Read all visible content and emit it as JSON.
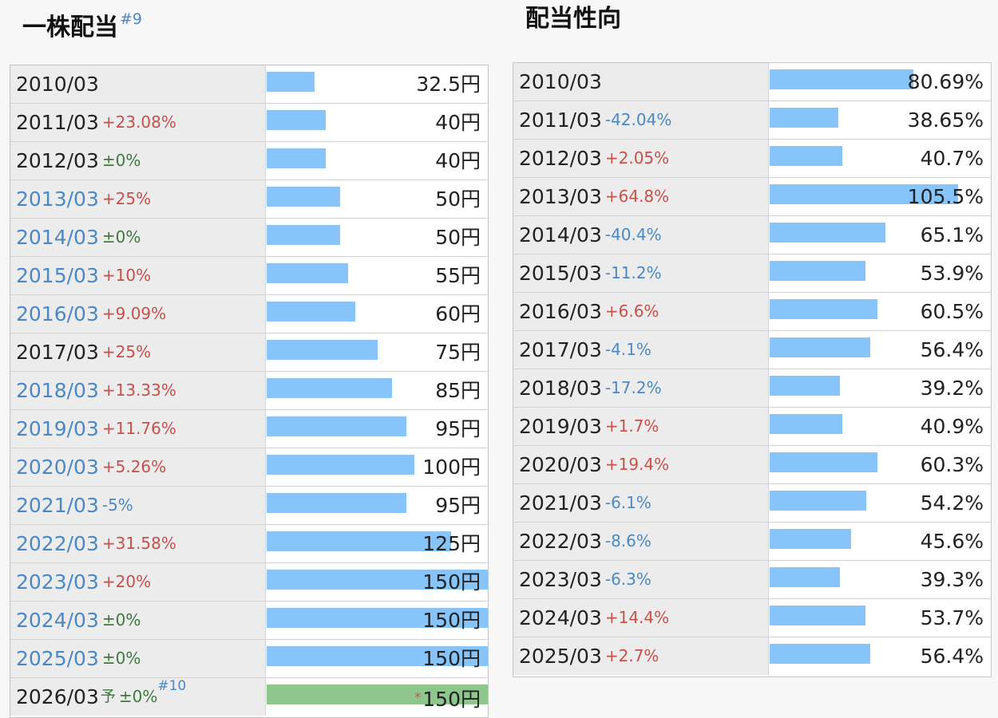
{
  "dividend_section": {
    "title": "一株配当",
    "title_note": "#9"
  },
  "payout_section": {
    "title": "配当性向"
  },
  "chart_data": [
    {
      "type": "bar",
      "title": "一株配当",
      "unit": "円",
      "xlim": [
        0,
        150
      ],
      "categories": [
        "2010/03",
        "2011/03",
        "2012/03",
        "2013/03",
        "2014/03",
        "2015/03",
        "2016/03",
        "2017/03",
        "2018/03",
        "2019/03",
        "2020/03",
        "2021/03",
        "2022/03",
        "2023/03",
        "2024/03",
        "2025/03",
        "2026/03"
      ],
      "values": [
        32.5,
        40,
        40,
        50,
        50,
        55,
        60,
        75,
        85,
        95,
        100,
        95,
        125,
        150,
        150,
        150,
        150
      ],
      "labels": [
        "32.5円",
        "40円",
        "40円",
        "50円",
        "50円",
        "55円",
        "60円",
        "75円",
        "85円",
        "95円",
        "100円",
        "95円",
        "125円",
        "150円",
        "150円",
        "150円",
        "150円"
      ],
      "changes": [
        "",
        "+23.08%",
        "±0%",
        "+25%",
        "±0%",
        "+10%",
        "+9.09%",
        "+25%",
        "+13.33%",
        "+11.76%",
        "+5.26%",
        "-5%",
        "+31.58%",
        "+20%",
        "±0%",
        "±0%",
        "±0%"
      ],
      "change_direction": [
        "",
        "up",
        "flat",
        "up",
        "flat",
        "up",
        "up",
        "up",
        "up",
        "up",
        "up",
        "down",
        "up",
        "up",
        "flat",
        "flat",
        "flat"
      ],
      "year_link": [
        false,
        false,
        false,
        true,
        true,
        true,
        true,
        false,
        true,
        true,
        true,
        true,
        true,
        true,
        true,
        true,
        false
      ],
      "forecast": [
        false,
        false,
        false,
        false,
        false,
        false,
        false,
        false,
        false,
        false,
        false,
        false,
        false,
        false,
        false,
        false,
        true
      ],
      "forecast_mark": "予",
      "forecast_note": "#10",
      "estimate_mark": "*",
      "colors": {
        "bar": "#87c4f9",
        "forecast_bar": "#8fc68c",
        "up": "#c9504b",
        "down": "#4a88c8",
        "flat": "#3d7a3d"
      }
    },
    {
      "type": "bar",
      "title": "配当性向",
      "unit": "%",
      "xlim": [
        0,
        124
      ],
      "categories": [
        "2010/03",
        "2011/03",
        "2012/03",
        "2013/03",
        "2014/03",
        "2015/03",
        "2016/03",
        "2017/03",
        "2018/03",
        "2019/03",
        "2020/03",
        "2021/03",
        "2022/03",
        "2023/03",
        "2024/03",
        "2025/03"
      ],
      "values": [
        80.69,
        38.65,
        40.7,
        105.5,
        65.1,
        53.9,
        60.5,
        56.4,
        39.2,
        40.9,
        60.3,
        54.2,
        45.6,
        39.3,
        53.7,
        56.4
      ],
      "labels": [
        "80.69%",
        "38.65%",
        "40.7%",
        "105.5%",
        "65.1%",
        "53.9%",
        "60.5%",
        "56.4%",
        "39.2%",
        "40.9%",
        "60.3%",
        "54.2%",
        "45.6%",
        "39.3%",
        "53.7%",
        "56.4%"
      ],
      "changes": [
        "",
        "-42.04%",
        "+2.05%",
        "+64.8%",
        "-40.4%",
        "-11.2%",
        "+6.6%",
        "-4.1%",
        "-17.2%",
        "+1.7%",
        "+19.4%",
        "-6.1%",
        "-8.6%",
        "-6.3%",
        "+14.4%",
        "+2.7%"
      ],
      "change_direction": [
        "",
        "down",
        "up",
        "up",
        "down",
        "down",
        "up",
        "down",
        "down",
        "up",
        "up",
        "down",
        "down",
        "down",
        "up",
        "up"
      ],
      "year_link": [
        false,
        false,
        false,
        false,
        false,
        false,
        false,
        false,
        false,
        false,
        false,
        false,
        false,
        false,
        false,
        false
      ],
      "forecast": [
        false,
        false,
        false,
        false,
        false,
        false,
        false,
        false,
        false,
        false,
        false,
        false,
        false,
        false,
        false,
        false
      ],
      "colors": {
        "bar": "#87c4f9",
        "up": "#c9504b",
        "down": "#4a88c8",
        "flat": "#3d7a3d"
      }
    }
  ]
}
